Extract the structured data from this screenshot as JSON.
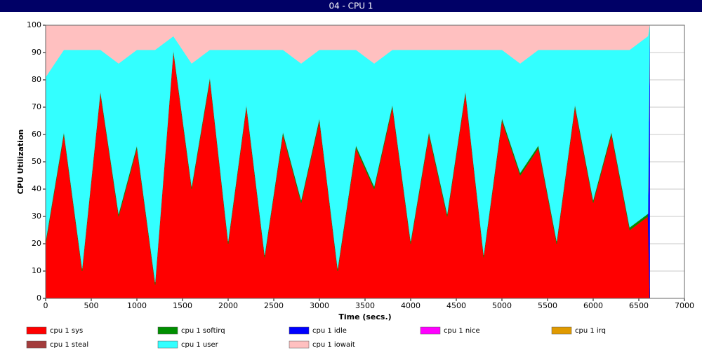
{
  "chart_data": {
    "type": "stacked-area",
    "title": "04 - CPU 1",
    "y_label": "CPU Utilization",
    "x_label": "Time (secs.)",
    "x": [
      0,
      200,
      400,
      600,
      800,
      1000,
      1200,
      1400,
      1600,
      1800,
      2000,
      2200,
      2400,
      2600,
      2800,
      3000,
      3200,
      3400,
      3600,
      3800,
      4000,
      4200,
      4400,
      4600,
      4800,
      5000,
      5200,
      5400,
      5600,
      5800,
      6000,
      6200,
      6400,
      6600,
      6620
    ],
    "series": [
      {
        "name": "cpu 1 sys",
        "color": "#ff0000",
        "values": [
          20,
          60,
          10,
          75,
          30,
          55,
          5,
          90,
          40,
          80,
          20,
          70,
          15,
          60,
          35,
          65,
          10,
          55,
          40,
          70,
          20,
          60,
          30,
          75,
          15,
          65,
          45,
          55,
          20,
          70,
          35,
          60,
          25,
          30,
          0
        ]
      },
      {
        "name": "cpu 1 softirq",
        "color": "#008f00",
        "values": [
          1,
          1,
          1,
          1,
          1,
          1,
          1,
          1,
          1,
          1,
          1,
          1,
          1,
          1,
          1,
          1,
          1,
          1,
          1,
          1,
          1,
          1,
          1,
          1,
          1,
          1,
          1,
          1,
          1,
          1,
          1,
          1,
          1,
          1,
          0
        ]
      },
      {
        "name": "cpu 1 idle",
        "color": "#0000ff",
        "values": [
          0,
          0,
          0,
          0,
          0,
          0,
          0,
          0,
          0,
          0,
          0,
          0,
          0,
          0,
          0,
          0,
          0,
          0,
          0,
          0,
          0,
          0,
          0,
          0,
          0,
          0,
          0,
          0,
          0,
          0,
          0,
          0,
          0,
          0,
          100
        ]
      },
      {
        "name": "cpu 1 nice",
        "color": "#ff00ff",
        "values": [
          0,
          0,
          0,
          0,
          0,
          0,
          0,
          0,
          0,
          0,
          0,
          0,
          0,
          0,
          0,
          0,
          0,
          0,
          0,
          0,
          0,
          0,
          0,
          0,
          0,
          0,
          0,
          0,
          0,
          0,
          0,
          0,
          0,
          0,
          0
        ]
      },
      {
        "name": "cpu 1 irq",
        "color": "#e09a00",
        "values": [
          0,
          0,
          0,
          0,
          0,
          0,
          0,
          0,
          0,
          0,
          0,
          0,
          0,
          0,
          0,
          0,
          0,
          0,
          0,
          0,
          0,
          0,
          0,
          0,
          0,
          0,
          0,
          0,
          0,
          0,
          0,
          0,
          0,
          0,
          0
        ]
      },
      {
        "name": "cpu 1 steal",
        "color": "#a33d3d",
        "values": [
          0,
          0,
          0,
          0,
          0,
          0,
          0,
          0,
          0,
          0,
          0,
          0,
          0,
          0,
          0,
          0,
          0,
          0,
          0,
          0,
          0,
          0,
          0,
          0,
          0,
          0,
          0,
          0,
          0,
          0,
          0,
          0,
          0,
          0,
          0
        ]
      },
      {
        "name": "cpu 1 user",
        "color": "#33ffff",
        "values": [
          60,
          30,
          80,
          15,
          55,
          35,
          85,
          5,
          45,
          10,
          70,
          20,
          75,
          30,
          50,
          25,
          80,
          35,
          45,
          20,
          70,
          30,
          60,
          15,
          75,
          25,
          40,
          35,
          70,
          20,
          55,
          30,
          65,
          65,
          0
        ]
      },
      {
        "name": "cpu 1 iowait",
        "color": "#ffc0c0",
        "values": [
          19,
          9,
          9,
          9,
          14,
          9,
          9,
          4,
          14,
          9,
          9,
          9,
          9,
          9,
          14,
          9,
          9,
          9,
          14,
          9,
          9,
          9,
          9,
          9,
          9,
          9,
          14,
          9,
          9,
          9,
          9,
          9,
          9,
          4,
          0
        ]
      }
    ],
    "xlim": [
      0,
      7000
    ],
    "xticks": [
      0,
      500,
      1000,
      1500,
      2000,
      2500,
      3000,
      3500,
      4000,
      4500,
      5000,
      5500,
      6000,
      6500,
      7000
    ],
    "ylim": [
      0,
      100
    ],
    "yticks": [
      0,
      10,
      20,
      30,
      40,
      50,
      60,
      70,
      80,
      90,
      100
    ],
    "grid": true
  }
}
